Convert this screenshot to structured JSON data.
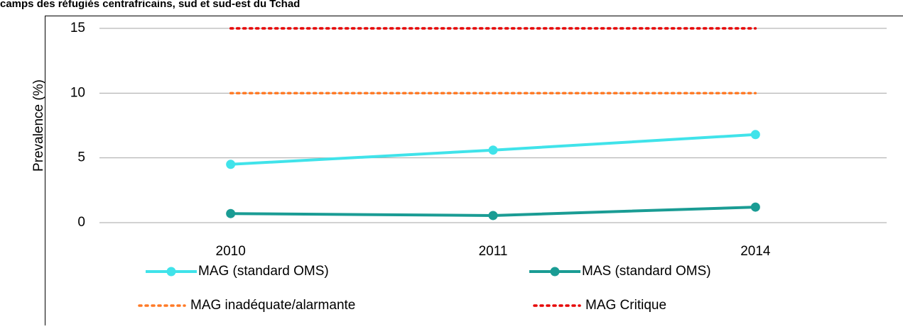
{
  "chart_data": {
    "type": "line",
    "title": "camps des réfugiés centrafricains, sud et sud-est du Tchad",
    "y_label": "Prevalence (%)",
    "categories": [
      "2010",
      "2011",
      "2014"
    ],
    "series": [
      {
        "name": "MAG (standard OMS)",
        "color": "#40e3ea",
        "style": "solid",
        "marker": true,
        "values": [
          4.5,
          5.6,
          6.8
        ]
      },
      {
        "name": "MAS (standard OMS)",
        "color": "#1a9c94",
        "style": "solid",
        "marker": true,
        "values": [
          0.7,
          0.55,
          1.2
        ]
      },
      {
        "name": "MAG inadéquate/alarmante",
        "color": "#ff7a26",
        "style": "dotted",
        "marker": false,
        "values": [
          10,
          10,
          10
        ]
      },
      {
        "name": "MAG Critique",
        "color": "#e60000",
        "style": "dotted",
        "marker": false,
        "values": [
          15,
          15,
          15
        ]
      }
    ],
    "ylim": [
      0,
      15
    ],
    "yticks": [
      0,
      5,
      10,
      15
    ],
    "grid": true,
    "legend": "bottom"
  }
}
